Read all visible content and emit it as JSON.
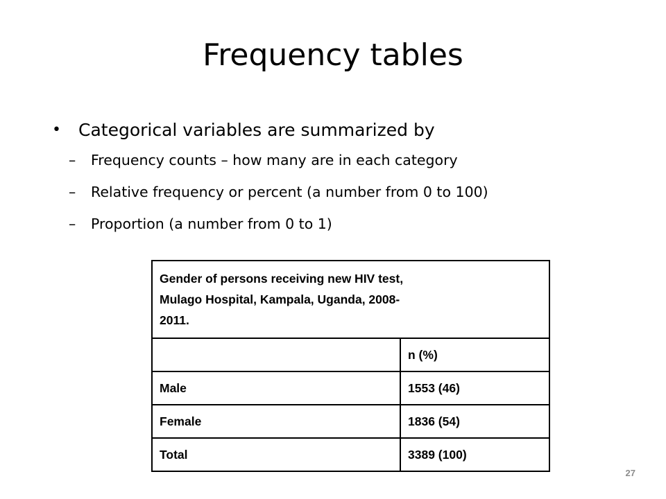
{
  "slide": {
    "title": "Frequency tables",
    "page_number": "27"
  },
  "bullets": {
    "main": "Categorical variables are summarized by",
    "subs": [
      "Frequency counts – how many are in each category",
      "Relative frequency or percent (a number from 0 to 100)",
      "Proportion (a number from 0 to 1)"
    ],
    "bullet_symbol": "•",
    "dash_symbol": "–"
  },
  "table": {
    "caption_lines": [
      "Gender of persons receiving new HIV test,",
      "Mulago Hospital, Kampala, Uganda, 2008-",
      "2011."
    ],
    "header": [
      "",
      "n (%)"
    ],
    "rows": [
      [
        "Male",
        "1553 (46)"
      ],
      [
        "Female",
        "1836 (54)"
      ],
      [
        "Total",
        "3389 (100)"
      ]
    ]
  }
}
